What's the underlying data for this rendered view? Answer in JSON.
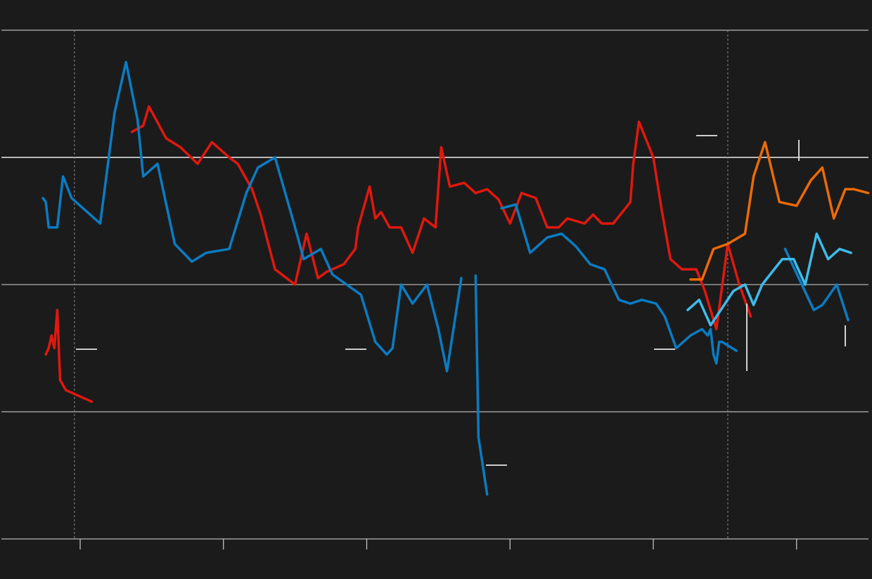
{
  "chart_data": {
    "type": "line",
    "title": "",
    "xlabel": "",
    "ylabel": "",
    "xlim": [
      1986.45,
      2017.7
    ],
    "ylim": [
      -2,
      2
    ],
    "grid": true,
    "legend": "none",
    "x_ticks": [
      1987,
      1992,
      1997,
      2002,
      2007,
      2012
    ],
    "y_gridlines": [
      -2,
      -1,
      0,
      1,
      2
    ],
    "reference_x": [
      1986.8,
      2009.6
    ],
    "series": [
      {
        "color": "#e0180e",
        "segments": [
          [
            [
              1985.8,
              -0.55
            ],
            [
              1985.9,
              -0.5
            ],
            [
              1986.0,
              -0.4
            ],
            [
              1986.1,
              -0.5
            ],
            [
              1986.2,
              -0.2
            ],
            [
              1986.3,
              -0.75
            ],
            [
              1986.5,
              -0.83
            ],
            [
              1987.4,
              -0.92
            ]
          ],
          [
            [
              1988.8,
              1.2
            ],
            [
              1989.2,
              1.25
            ],
            [
              1989.4,
              1.4
            ],
            [
              1990.0,
              1.15
            ],
            [
              1990.5,
              1.08
            ],
            [
              1991.1,
              0.95
            ],
            [
              1991.6,
              1.12
            ],
            [
              1992.2,
              1.0
            ],
            [
              1992.5,
              0.95
            ],
            [
              1993.0,
              0.75
            ],
            [
              1993.3,
              0.55
            ],
            [
              1993.8,
              0.12
            ],
            [
              1994.5,
              0.0
            ],
            [
              1994.9,
              0.4
            ],
            [
              1995.3,
              0.05
            ],
            [
              1995.6,
              0.1
            ],
            [
              1996.2,
              0.16
            ],
            [
              1996.6,
              0.28
            ],
            [
              1996.7,
              0.45
            ],
            [
              1997.1,
              0.77
            ],
            [
              1997.3,
              0.52
            ],
            [
              1997.5,
              0.57
            ],
            [
              1997.8,
              0.45
            ],
            [
              1998.2,
              0.45
            ],
            [
              1998.6,
              0.25
            ],
            [
              1999.0,
              0.52
            ],
            [
              1999.4,
              0.45
            ],
            [
              1999.6,
              1.08
            ],
            [
              1999.9,
              0.77
            ],
            [
              2000.4,
              0.8
            ],
            [
              2000.8,
              0.72
            ],
            [
              2001.2,
              0.75
            ],
            [
              2001.6,
              0.67
            ],
            [
              2002.0,
              0.48
            ],
            [
              2002.4,
              0.72
            ],
            [
              2002.9,
              0.68
            ],
            [
              2003.3,
              0.45
            ],
            [
              2003.7,
              0.45
            ],
            [
              2004.0,
              0.52
            ],
            [
              2004.6,
              0.48
            ],
            [
              2004.9,
              0.55
            ],
            [
              2005.2,
              0.48
            ],
            [
              2005.6,
              0.48
            ],
            [
              2006.1,
              0.62
            ],
            [
              2006.2,
              0.65
            ],
            [
              2006.3,
              0.95
            ],
            [
              2006.5,
              1.28
            ],
            [
              2007.0,
              1.0
            ],
            [
              2007.3,
              0.58
            ],
            [
              2007.6,
              0.2
            ],
            [
              2008.0,
              0.12
            ],
            [
              2008.5,
              0.12
            ],
            [
              2008.8,
              -0.05
            ],
            [
              2009.2,
              -0.35
            ],
            [
              2009.6,
              0.32
            ],
            [
              2010.0,
              0.0
            ],
            [
              2010.4,
              -0.25
            ]
          ]
        ]
      },
      {
        "color": "#0a7cc3",
        "segments": [
          [
            [
              1985.7,
              0.68
            ],
            [
              1985.8,
              0.65
            ],
            [
              1985.9,
              0.45
            ],
            [
              1986.2,
              0.45
            ],
            [
              1986.4,
              0.85
            ],
            [
              1986.7,
              0.68
            ],
            [
              1987.7,
              0.48
            ],
            [
              1988.2,
              1.35
            ],
            [
              1988.6,
              1.75
            ],
            [
              1989.0,
              1.3
            ],
            [
              1989.2,
              0.85
            ],
            [
              1989.7,
              0.95
            ],
            [
              1990.3,
              0.32
            ],
            [
              1990.9,
              0.18
            ],
            [
              1991.4,
              0.25
            ],
            [
              1992.2,
              0.28
            ],
            [
              1992.8,
              0.72
            ],
            [
              1993.2,
              0.92
            ],
            [
              1993.8,
              1.0
            ],
            [
              1994.5,
              0.45
            ],
            [
              1994.8,
              0.2
            ],
            [
              1995.4,
              0.28
            ],
            [
              1995.8,
              0.08
            ],
            [
              1996.8,
              -0.08
            ],
            [
              1997.3,
              -0.45
            ],
            [
              1997.7,
              -0.55
            ],
            [
              1997.9,
              -0.5
            ],
            [
              1998.2,
              0.0
            ],
            [
              1998.6,
              -0.15
            ],
            [
              1999.1,
              0.0
            ],
            [
              1999.5,
              -0.35
            ],
            [
              1999.8,
              -0.68
            ],
            [
              2000.3,
              0.05
            ]
          ],
          [
            [
              2000.8,
              0.07
            ],
            [
              2000.9,
              -1.2
            ],
            [
              2001.2,
              -1.65
            ]
          ],
          [
            [
              2001.7,
              0.6
            ],
            [
              2002.2,
              0.63
            ],
            [
              2002.7,
              0.25
            ],
            [
              2003.3,
              0.37
            ],
            [
              2003.8,
              0.4
            ],
            [
              2004.3,
              0.3
            ],
            [
              2004.8,
              0.16
            ],
            [
              2005.3,
              0.12
            ],
            [
              2005.8,
              -0.12
            ],
            [
              2006.2,
              -0.15
            ],
            [
              2006.6,
              -0.12
            ],
            [
              2007.1,
              -0.15
            ],
            [
              2007.4,
              -0.25
            ],
            [
              2007.8,
              -0.5
            ],
            [
              2008.3,
              -0.4
            ],
            [
              2008.7,
              -0.35
            ],
            [
              2008.9,
              -0.4
            ],
            [
              2009.0,
              -0.35
            ],
            [
              2009.1,
              -0.55
            ],
            [
              2009.2,
              -0.62
            ],
            [
              2009.3,
              -0.45
            ],
            [
              2009.4,
              -0.45
            ],
            [
              2009.9,
              -0.52
            ]
          ],
          [
            [
              2011.6,
              0.28
            ],
            [
              2012.6,
              -0.2
            ],
            [
              2012.9,
              -0.16
            ],
            [
              2013.4,
              0.0
            ],
            [
              2013.8,
              -0.28
            ]
          ]
        ]
      },
      {
        "color": "#ec6a06",
        "segments": [
          [
            [
              2008.3,
              0.04
            ],
            [
              2008.7,
              0.04
            ],
            [
              2009.1,
              0.28
            ],
            [
              2009.6,
              0.32
            ],
            [
              2010.2,
              0.4
            ],
            [
              2010.5,
              0.85
            ],
            [
              2010.9,
              1.12
            ],
            [
              2011.4,
              0.65
            ],
            [
              2012.0,
              0.62
            ],
            [
              2012.5,
              0.82
            ],
            [
              2012.9,
              0.92
            ],
            [
              2013.3,
              0.52
            ],
            [
              2013.7,
              0.75
            ],
            [
              2014.0,
              0.75
            ],
            [
              2014.5,
              0.72
            ]
          ]
        ]
      },
      {
        "color": "#3dbcea",
        "segments": [
          [
            [
              2008.2,
              -0.2
            ],
            [
              2008.6,
              -0.12
            ],
            [
              2009.0,
              -0.32
            ],
            [
              2009.8,
              -0.05
            ],
            [
              2010.2,
              0.0
            ],
            [
              2010.5,
              -0.16
            ],
            [
              2010.8,
              0.0
            ],
            [
              2011.5,
              0.2
            ],
            [
              2011.9,
              0.2
            ],
            [
              2012.3,
              0.0
            ],
            [
              2012.7,
              0.4
            ],
            [
              2013.1,
              0.2
            ],
            [
              2013.5,
              0.28
            ],
            [
              2013.9,
              0.25
            ]
          ]
        ]
      }
    ]
  }
}
